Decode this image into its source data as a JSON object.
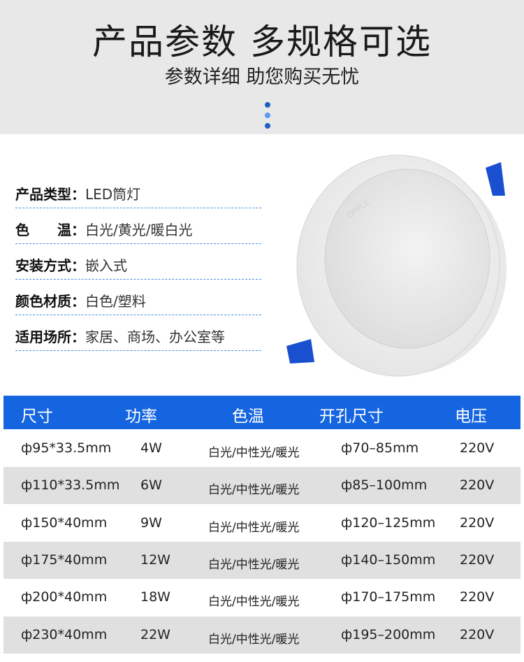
{
  "header": {
    "title": "产品参数 多规格可选",
    "subtitle": "参数详细 助您购买无忧"
  },
  "specs": [
    {
      "label": "产品类型：",
      "value": "LED筒灯"
    },
    {
      "label": "色　　温：",
      "value": "白光/黄光/暖白光"
    },
    {
      "label": "安装方式：",
      "value": "嵌入式"
    },
    {
      "label": "颜色材质：",
      "value": "白色/塑料"
    },
    {
      "label": "适用场所：",
      "value": "家居、商场、办公室等"
    }
  ],
  "product_image": {
    "logo": "OPPLE"
  },
  "table": {
    "headers": [
      "尺寸",
      "功率",
      "色温",
      "开孔尺寸",
      "电压"
    ],
    "rows": [
      [
        "ф95*33.5mm",
        "4W",
        "白光/中性光/暖光",
        "ф70–85mm",
        "220V"
      ],
      [
        "ф110*33.5mm",
        "6W",
        "白光/中性光/暖光",
        "ф85–100mm",
        "220V"
      ],
      [
        "ф150*40mm",
        "9W",
        "白光/中性光/暖光",
        "ф120–125mm",
        "220V"
      ],
      [
        "ф175*40mm",
        "12W",
        "白光/中性光/暖光",
        "ф140–150mm",
        "220V"
      ],
      [
        "ф200*40mm",
        "18W",
        "白光/中性光/暖光",
        "ф170–175mm",
        "220V"
      ],
      [
        "ф230*40mm",
        "22W",
        "白光/中性光/暖光",
        "ф195–200mm",
        "220V"
      ]
    ]
  },
  "colors": {
    "accent": "#1565e0",
    "band": "#e8e8e8",
    "row_alt": "#e0e0e0"
  }
}
